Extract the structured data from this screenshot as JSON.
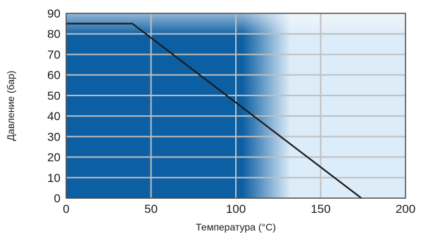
{
  "chart_data": {
    "type": "line",
    "xlabel": "Температура (°C)",
    "ylabel": "Давление (бар)",
    "xlim": [
      0,
      200
    ],
    "ylim": [
      0,
      90
    ],
    "xticks": [
      0,
      50,
      100,
      150,
      200
    ],
    "yticks": [
      0,
      10,
      20,
      30,
      40,
      50,
      60,
      70,
      80,
      90
    ],
    "grid": true,
    "series": [
      {
        "x": [
          0,
          39,
          174
        ],
        "y": [
          85,
          85,
          0
        ]
      }
    ],
    "colors": {
      "fill_dark": "#0d5fa3",
      "fill_light": "#dcecf8",
      "grid": "#bfbfbf",
      "line": "#1a1a1a",
      "frame": "#4a4a4a"
    }
  }
}
